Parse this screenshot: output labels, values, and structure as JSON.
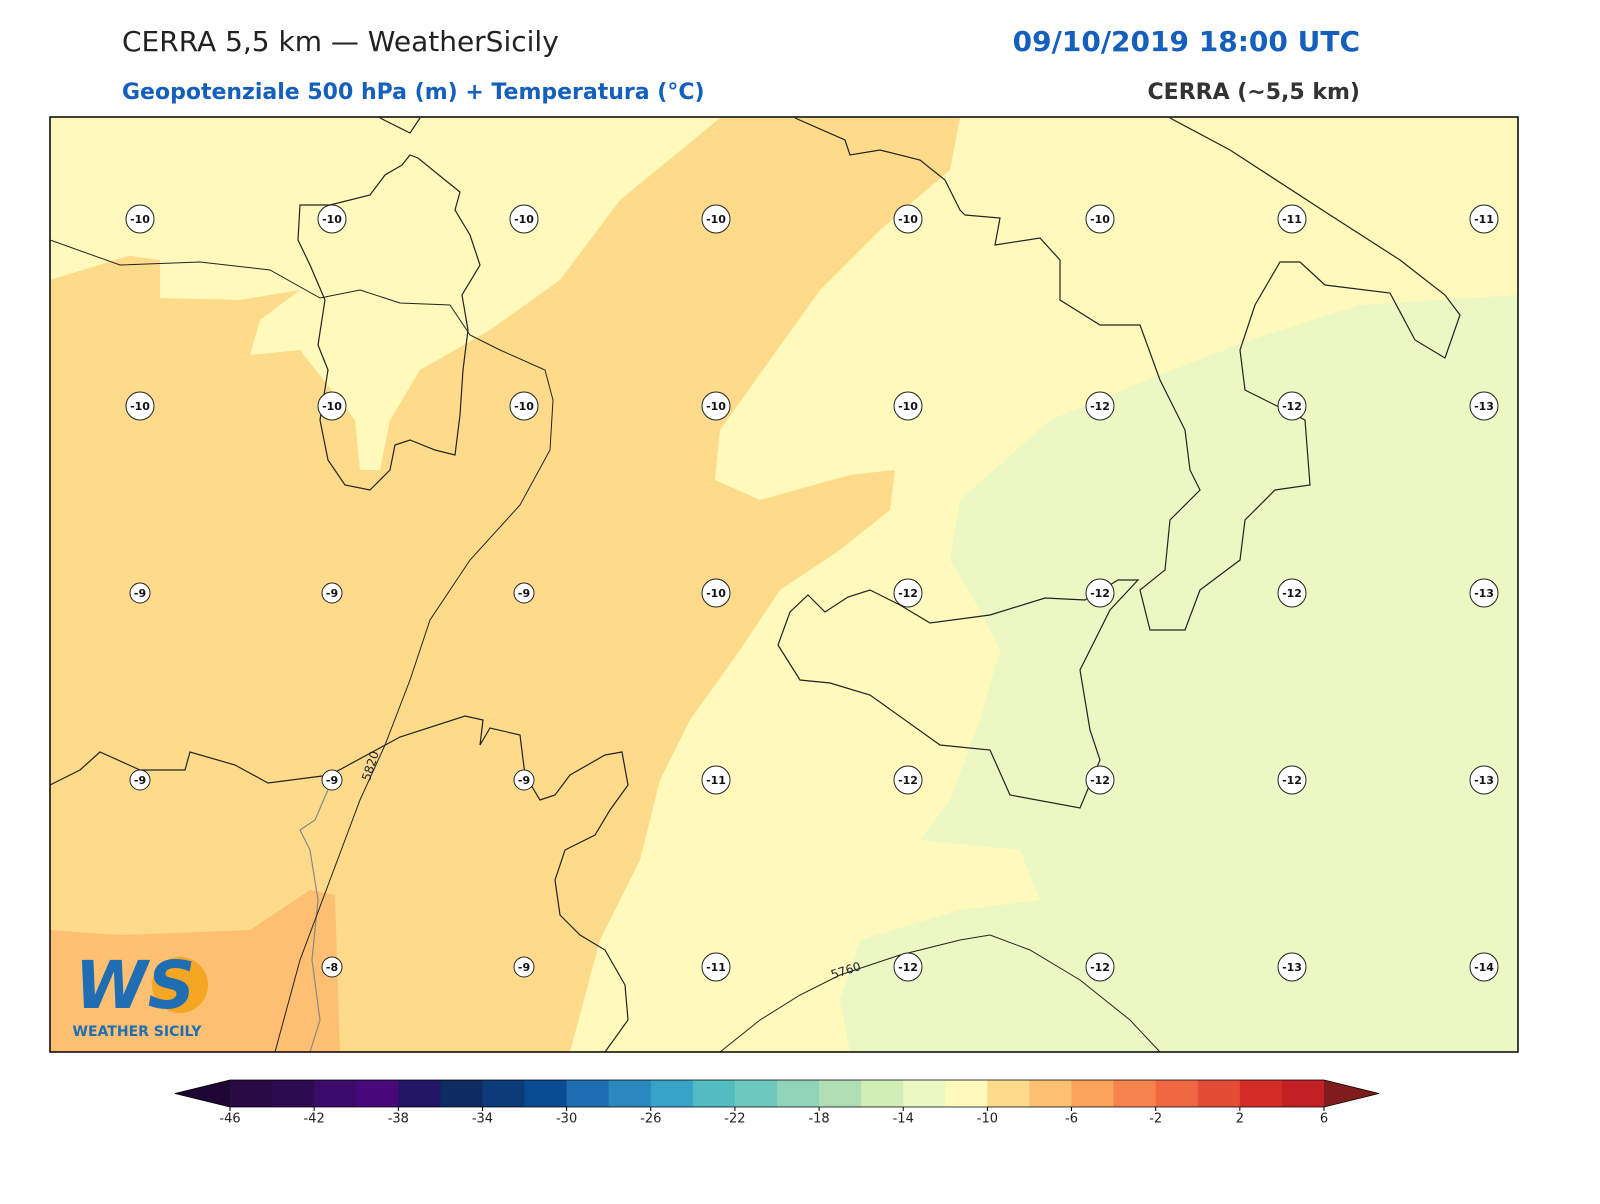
{
  "header": {
    "title": "CERRA 5,5 km — WeatherSicily",
    "datetime": "09/10/2019 18:00 UTC",
    "subtitle": "Geopotenziale 500 hPa (m) + Temperatura (°C)",
    "source": "CERRA (~5,5 km)"
  },
  "map": {
    "station_rows": [
      [
        -10,
        -10,
        -10,
        -10,
        -10,
        -10,
        -11,
        -11
      ],
      [
        -10,
        -10,
        -10,
        -10,
        -10,
        -12,
        -12,
        -13
      ],
      [
        -9,
        -9,
        -9,
        -10,
        -12,
        -12,
        -12,
        -13
      ],
      [
        -9,
        -9,
        -9,
        -11,
        -12,
        -12,
        -12,
        -13
      ],
      [
        null,
        -8,
        -9,
        -11,
        -12,
        -12,
        -13,
        -14
      ]
    ],
    "contour_labels": [
      "5820",
      "5760"
    ]
  },
  "colorbar": {
    "lim": [
      -46,
      6
    ],
    "ticks": [
      -46,
      -42,
      -38,
      -34,
      -30,
      -26,
      -22,
      -18,
      -14,
      -10,
      -6,
      -2,
      2,
      6
    ],
    "colors": [
      "#2a0a45",
      "#2d0b4f",
      "#3b0a6a",
      "#47097a",
      "#231566",
      "#0f2c62",
      "#0d3a78",
      "#0a4c94",
      "#1f6eb3",
      "#2a88be",
      "#37a3c8",
      "#52bcc2",
      "#6ec9bd",
      "#8fd4b9",
      "#b0deb3",
      "#d2edb5",
      "#ebf8c3",
      "#fff9bc",
      "#fedb8b",
      "#fdbf71",
      "#fba35b",
      "#f7834c",
      "#f06842",
      "#e44c35",
      "#d42d27",
      "#c32024"
    ],
    "under_color": "#1f0533",
    "over_color": "#7f1d1d"
  },
  "logo": {
    "mark": "WS",
    "name": "WEATHER SICILY"
  }
}
